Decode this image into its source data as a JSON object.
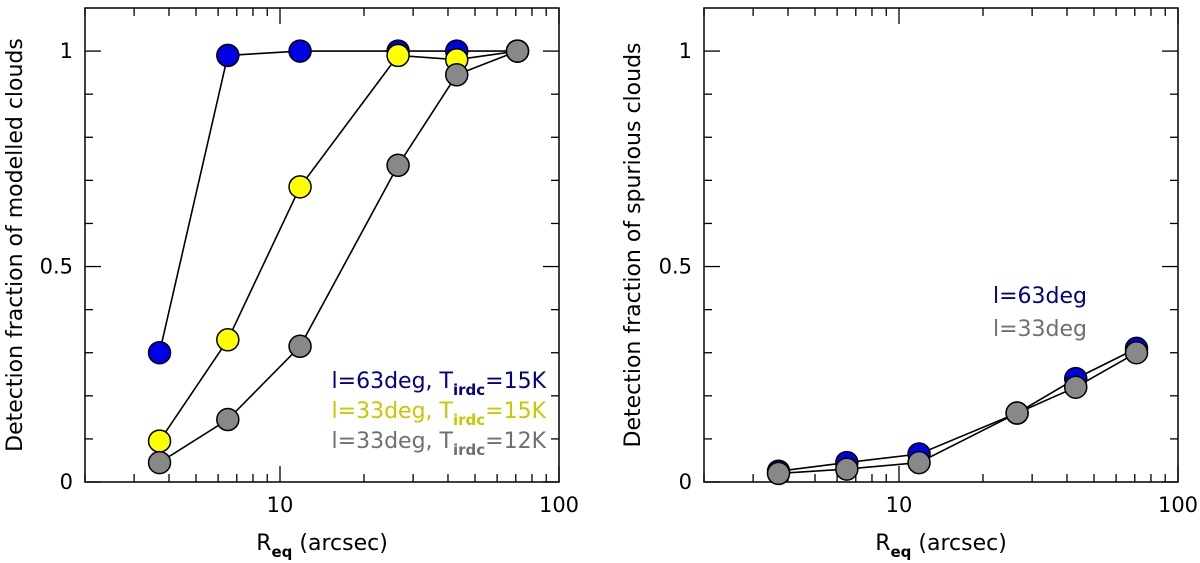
{
  "chart_data": [
    {
      "type": "line",
      "xscale": "log",
      "xlim": [
        2,
        100
      ],
      "ylim": [
        0,
        1.1
      ],
      "xticks": [
        10,
        100
      ],
      "xtick_labels": [
        "10",
        "100"
      ],
      "yticks": [
        0,
        0.5,
        1
      ],
      "ytick_labels": [
        "0",
        "0.5",
        "1"
      ],
      "xlabel_main": "R",
      "xlabel_sub": "eq",
      "xlabel_rest": " (arcsec)",
      "ylabel": "Detection fraction of modelled clouds",
      "legend_placement": "bottom-right",
      "series": [
        {
          "name": "l=63deg, T_irdc=15K",
          "legend_prefix": "l=63deg, T",
          "legend_sub": "irdc",
          "legend_suffix": "=15K",
          "color": "#0000e6",
          "text_color": "#00008b",
          "x": [
            3.7,
            6.5,
            11.8,
            26.5,
            43,
            71
          ],
          "values": [
            0.3,
            0.99,
            1.0,
            1.0,
            1.0,
            1.0
          ]
        },
        {
          "name": "l=33deg, T_irdc=15K",
          "legend_prefix": "l=33deg, T",
          "legend_sub": "irdc",
          "legend_suffix": "=15K",
          "color": "#ffff00",
          "text_color": "#c8c800",
          "x": [
            3.7,
            6.5,
            11.8,
            26.5,
            43,
            71
          ],
          "values": [
            0.095,
            0.33,
            0.685,
            0.99,
            0.98,
            1.0
          ]
        },
        {
          "name": "l=33deg, T_irdc=12K",
          "legend_prefix": "l=33deg, T",
          "legend_sub": "irdc",
          "legend_suffix": "=12K",
          "color": "#888888",
          "text_color": "#707070",
          "x": [
            3.7,
            6.5,
            11.8,
            26.5,
            43,
            71
          ],
          "values": [
            0.045,
            0.145,
            0.315,
            0.735,
            0.945,
            1.0
          ]
        }
      ]
    },
    {
      "type": "line",
      "xscale": "log",
      "xlim": [
        2,
        100
      ],
      "ylim": [
        0,
        1.1
      ],
      "xticks": [
        10,
        100
      ],
      "xtick_labels": [
        "10",
        "100"
      ],
      "yticks": [
        0,
        0.5,
        1
      ],
      "ytick_labels": [
        "0",
        "0.5",
        "1"
      ],
      "xlabel_main": "R",
      "xlabel_sub": "eq",
      "xlabel_rest": " (arcsec)",
      "ylabel": "Detection fraction of spurious clouds",
      "legend_placement": "middle-right",
      "series": [
        {
          "name": "l=63deg",
          "legend_prefix": "l=63deg",
          "legend_sub": "",
          "legend_suffix": "",
          "color": "#0000e6",
          "text_color": "#00008b",
          "x": [
            3.7,
            6.5,
            11.8,
            26.5,
            43,
            71
          ],
          "values": [
            0.025,
            0.045,
            0.065,
            0.16,
            0.24,
            0.31
          ]
        },
        {
          "name": "l=33deg",
          "legend_prefix": "l=33deg",
          "legend_sub": "",
          "legend_suffix": "",
          "color": "#888888",
          "text_color": "#707070",
          "x": [
            3.7,
            6.5,
            11.8,
            26.5,
            43,
            71
          ],
          "values": [
            0.02,
            0.03,
            0.045,
            0.16,
            0.22,
            0.3
          ]
        }
      ]
    }
  ]
}
